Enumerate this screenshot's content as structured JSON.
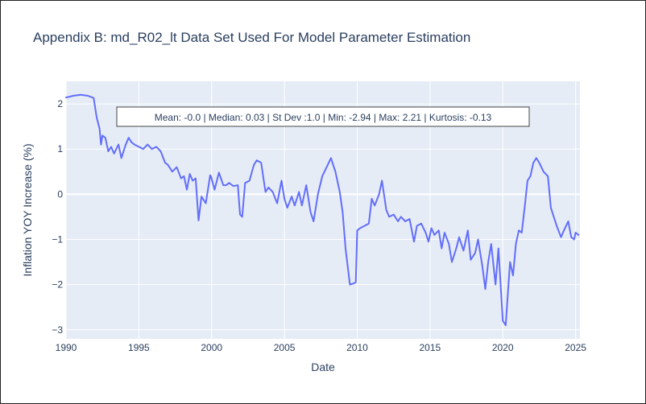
{
  "chart_data": {
    "type": "line",
    "title": "Appendix B: md_R02_lt Data Set Used For Model Parameter Estimation",
    "xlabel": "Date",
    "ylabel": "Inflation YOY Increase (%)",
    "xlim": [
      1990.0,
      2025.3
    ],
    "ylim": [
      -3.2,
      2.5
    ],
    "x_ticks": [
      1990,
      1995,
      2000,
      2005,
      2010,
      2015,
      2020,
      2025
    ],
    "x_tick_labels": [
      "1990",
      "1995",
      "2000",
      "2005",
      "2010",
      "2015",
      "2020",
      "2025"
    ],
    "y_ticks": [
      -3,
      -2,
      -1,
      0,
      1,
      2
    ],
    "y_tick_labels": [
      "−3",
      "−2",
      "−1",
      "0",
      "1",
      "2"
    ],
    "grid": true,
    "annotation": "Mean: -0.0 | Median: 0.03 | St Dev :1.0 | Min: -2.94 | Max: 2.21 | Kurtosis: -0.13",
    "series": [
      {
        "color": "#636efa",
        "x": [
          1990.0,
          1990.5,
          1991.0,
          1991.5,
          1991.9,
          1992.1,
          1992.3,
          1992.4,
          1992.5,
          1992.7,
          1992.9,
          1993.1,
          1993.3,
          1993.6,
          1993.8,
          1994.1,
          1994.3,
          1994.5,
          1994.7,
          1995.0,
          1995.3,
          1995.6,
          1995.9,
          1996.2,
          1996.5,
          1996.8,
          1997.0,
          1997.3,
          1997.6,
          1997.9,
          1998.1,
          1998.3,
          1998.5,
          1998.7,
          1998.9,
          1999.1,
          1999.3,
          1999.6,
          1999.9,
          1999.95,
          2000.2,
          2000.5,
          2000.8,
          2001.0,
          2001.2,
          2001.5,
          2001.8,
          2001.95,
          2002.1,
          2002.3,
          2002.6,
          2002.9,
          2003.1,
          2003.4,
          2003.7,
          2003.9,
          2004.2,
          2004.5,
          2004.8,
          2005.0,
          2005.2,
          2005.5,
          2005.7,
          2006.0,
          2006.2,
          2006.5,
          2006.8,
          2007.0,
          2007.3,
          2007.6,
          2007.9,
          2008.2,
          2008.5,
          2008.8,
          2009.0,
          2009.2,
          2009.5,
          2009.7,
          2009.9,
          2010.0,
          2010.2,
          2010.5,
          2010.8,
          2011.0,
          2011.2,
          2011.5,
          2011.7,
          2012.0,
          2012.2,
          2012.5,
          2012.8,
          2013.0,
          2013.3,
          2013.6,
          2013.9,
          2014.1,
          2014.4,
          2014.7,
          2014.9,
          2015.1,
          2015.3,
          2015.6,
          2015.8,
          2016.0,
          2016.3,
          2016.5,
          2016.8,
          2017.0,
          2017.3,
          2017.6,
          2017.8,
          2018.1,
          2018.3,
          2018.6,
          2018.8,
          2019.0,
          2019.2,
          2019.5,
          2019.7,
          2020.0,
          2020.2,
          2020.35,
          2020.5,
          2020.7,
          2020.9,
          2021.1,
          2021.3,
          2021.5,
          2021.7,
          2021.9,
          2022.1,
          2022.3,
          2022.5,
          2022.8,
          2023.1,
          2023.3,
          2023.5,
          2023.7,
          2024.0,
          2024.2,
          2024.5,
          2024.7,
          2024.9,
          2025.0,
          2025.2
        ],
        "y": [
          2.14,
          2.18,
          2.2,
          2.18,
          2.13,
          1.7,
          1.45,
          1.1,
          1.3,
          1.25,
          0.95,
          1.05,
          0.9,
          1.1,
          0.8,
          1.1,
          1.25,
          1.15,
          1.1,
          1.05,
          1.0,
          1.1,
          1.0,
          1.05,
          0.95,
          0.7,
          0.65,
          0.5,
          0.6,
          0.35,
          0.4,
          0.1,
          0.45,
          0.3,
          0.35,
          -0.58,
          -0.05,
          -0.2,
          0.42,
          0.4,
          0.1,
          0.48,
          0.2,
          0.2,
          0.25,
          0.18,
          0.2,
          -0.45,
          -0.5,
          0.25,
          0.3,
          0.65,
          0.75,
          0.7,
          0.05,
          0.15,
          0.05,
          -0.2,
          0.3,
          -0.1,
          -0.3,
          -0.05,
          -0.25,
          0.05,
          -0.25,
          0.2,
          -0.4,
          -0.6,
          0.0,
          0.4,
          0.6,
          0.8,
          0.5,
          0.05,
          -0.4,
          -1.2,
          -2.0,
          -1.98,
          -1.95,
          -0.8,
          -0.75,
          -0.7,
          -0.65,
          -0.1,
          -0.25,
          0.0,
          0.3,
          -0.35,
          -0.5,
          -0.45,
          -0.6,
          -0.5,
          -0.6,
          -0.55,
          -1.05,
          -0.7,
          -0.65,
          -0.85,
          -1.05,
          -0.75,
          -0.9,
          -0.8,
          -1.2,
          -0.85,
          -1.1,
          -1.5,
          -1.2,
          -0.95,
          -1.25,
          -0.8,
          -1.45,
          -1.3,
          -1.0,
          -1.6,
          -2.1,
          -1.5,
          -1.1,
          -2.0,
          -1.2,
          -2.8,
          -2.9,
          -2.2,
          -1.5,
          -1.8,
          -1.1,
          -0.8,
          -0.85,
          -0.3,
          0.3,
          0.4,
          0.7,
          0.8,
          0.7,
          0.5,
          0.4,
          -0.3,
          -0.5,
          -0.7,
          -0.95,
          -0.8,
          -0.6,
          -0.95,
          -1.0,
          -0.85,
          -0.9
        ]
      }
    ]
  }
}
